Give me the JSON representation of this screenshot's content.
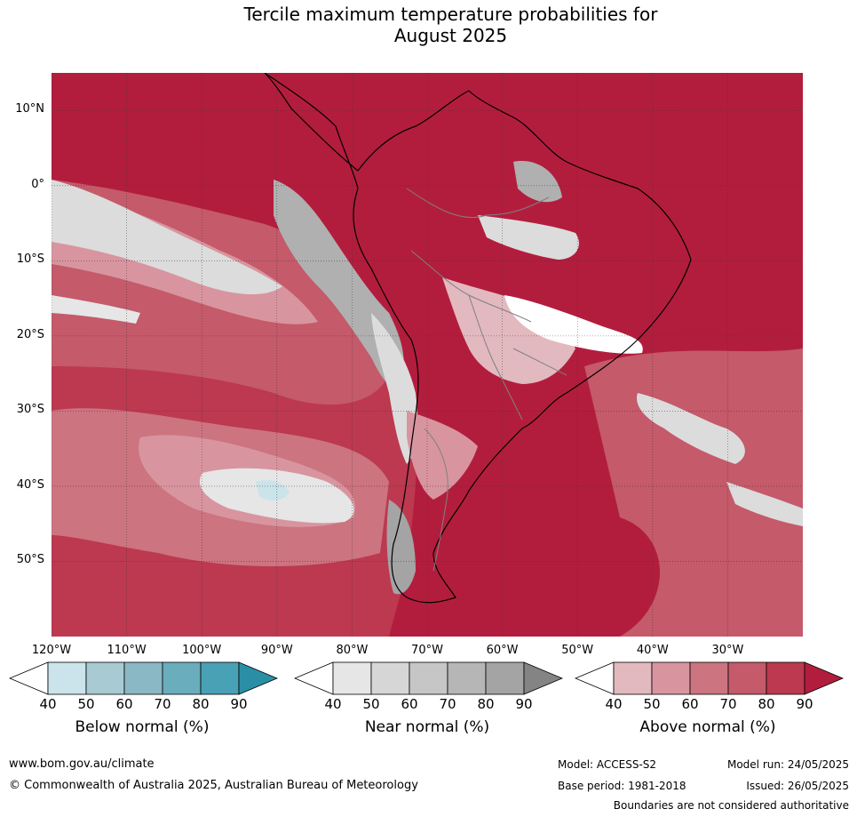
{
  "title_line1": "Tercile maximum temperature probabilities for",
  "title_line2": "August 2025",
  "lat_ticks": [
    {
      "label": "10°N",
      "value": 10
    },
    {
      "label": "0°",
      "value": 0
    },
    {
      "label": "10°S",
      "value": -10
    },
    {
      "label": "20°S",
      "value": -20
    },
    {
      "label": "30°S",
      "value": -30
    },
    {
      "label": "40°S",
      "value": -40
    },
    {
      "label": "50°S",
      "value": -50
    }
  ],
  "lon_ticks": [
    {
      "label": "120°W",
      "value": -120
    },
    {
      "label": "110°W",
      "value": -110
    },
    {
      "label": "100°W",
      "value": -100
    },
    {
      "label": "90°W",
      "value": -90
    },
    {
      "label": "80°W",
      "value": -80
    },
    {
      "label": "70°W",
      "value": -70
    },
    {
      "label": "60°W",
      "value": -60
    },
    {
      "label": "50°W",
      "value": -50
    },
    {
      "label": "40°W",
      "value": -40
    },
    {
      "label": "30°W",
      "value": -30
    }
  ],
  "colorbars": [
    {
      "label": "Below normal (%)",
      "ticks": [
        "40",
        "50",
        "60",
        "70",
        "80",
        "90"
      ],
      "colors": [
        "#ffffff",
        "#cbe3ea",
        "#a8cad2",
        "#8ab8c4",
        "#6aadbc",
        "#48a1b4",
        "#2a8fa6"
      ]
    },
    {
      "label": "Near normal (%)",
      "ticks": [
        "40",
        "50",
        "60",
        "70",
        "80",
        "90"
      ],
      "colors": [
        "#ffffff",
        "#e6e6e6",
        "#d6d6d6",
        "#c6c6c6",
        "#b6b6b6",
        "#a4a4a4",
        "#848484"
      ]
    },
    {
      "label": "Above normal (%)",
      "ticks": [
        "40",
        "50",
        "60",
        "70",
        "80",
        "90"
      ],
      "colors": [
        "#ffffff",
        "#e2b9bf",
        "#d8959f",
        "#cc7480",
        "#c45a6a",
        "#bc3950",
        "#b31d3d"
      ]
    }
  ],
  "footer": {
    "website": "www.bom.gov.au/climate",
    "copyright": "© Commonwealth of Australia 2025, Australian Bureau of Meteorology",
    "model": "Model: ACCESS-S2",
    "base_period": "Base period: 1981-2018",
    "model_run": "Model run: 24/05/2025",
    "issued": "Issued: 26/05/2025",
    "disclaimer": "Boundaries are not considered authoritative"
  },
  "colors": {
    "above_90": "#b31d3d",
    "above_80": "#bc3950",
    "above_70": "#c45a6a",
    "above_60": "#cc7480",
    "above_50": "#d8959f",
    "near_50": "#dcdcdc",
    "near_70": "#b0b0b0"
  }
}
